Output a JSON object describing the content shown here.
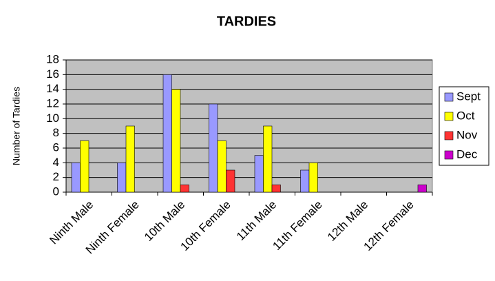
{
  "chart_data": {
    "type": "bar",
    "title": "TARDIES",
    "y_label": "Number of Tardies",
    "categories": [
      "Ninth Male",
      "Ninth Female",
      "10th Male",
      "10th Female",
      "11th Male",
      "11th Female",
      "12th Male",
      "12th Female"
    ],
    "series": [
      {
        "name": "Sept",
        "color": "#9999ff",
        "values": [
          4,
          4,
          16,
          12,
          5,
          3,
          0,
          0
        ]
      },
      {
        "name": "Oct",
        "color": "#ffff00",
        "values": [
          7,
          9,
          14,
          7,
          9,
          4,
          0,
          0
        ]
      },
      {
        "name": "Nov",
        "color": "#ff3333",
        "values": [
          0,
          0,
          1,
          3,
          1,
          0,
          0,
          0
        ]
      },
      {
        "name": "Dec",
        "color": "#cc00cc",
        "values": [
          0,
          0,
          0,
          0,
          0,
          0,
          0,
          1
        ]
      }
    ],
    "ylim": [
      0,
      18
    ],
    "yticks": [
      0,
      2,
      4,
      6,
      8,
      10,
      12,
      14,
      16,
      18
    ],
    "grid": true,
    "legend": "right"
  }
}
